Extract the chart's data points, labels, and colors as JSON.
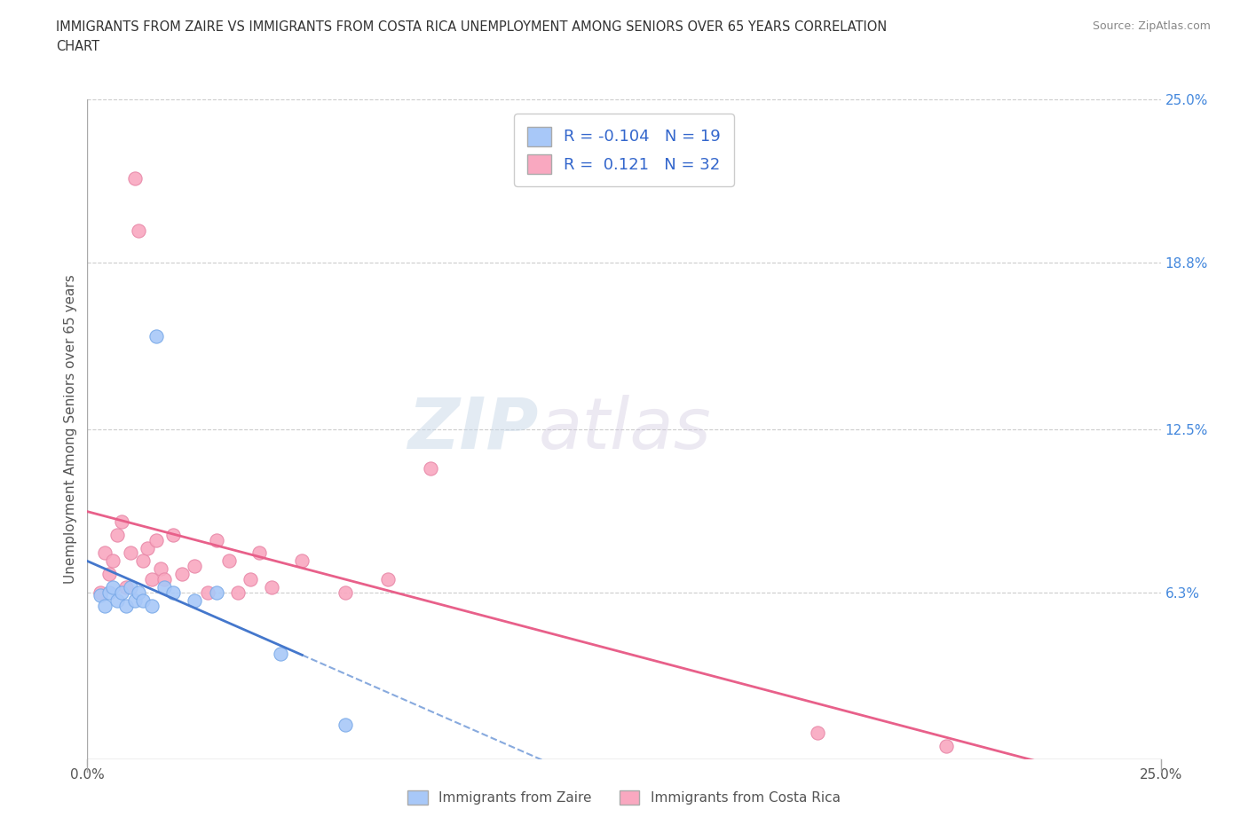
{
  "title_line1": "IMMIGRANTS FROM ZAIRE VS IMMIGRANTS FROM COSTA RICA UNEMPLOYMENT AMONG SENIORS OVER 65 YEARS CORRELATION",
  "title_line2": "CHART",
  "source": "Source: ZipAtlas.com",
  "ylabel": "Unemployment Among Seniors over 65 years",
  "xlim": [
    0.0,
    0.25
  ],
  "ylim": [
    0.0,
    0.25
  ],
  "xtick_positions": [
    0.0,
    0.25
  ],
  "xtick_labels": [
    "0.0%",
    "25.0%"
  ],
  "ytick_vals_right": [
    0.25,
    0.188,
    0.125,
    0.063
  ],
  "ytick_labels_right": [
    "25.0%",
    "18.8%",
    "12.5%",
    "6.3%"
  ],
  "grid_color": "#cccccc",
  "background_color": "#ffffff",
  "zaire_color": "#a8c8f8",
  "zaire_edge_color": "#7aaae8",
  "costa_rica_color": "#f9a8c0",
  "costa_rica_edge_color": "#e888a8",
  "zaire_line_color": "#4477cc",
  "zaire_dash_color": "#88aade",
  "costa_rica_line_color": "#e8608a",
  "R_zaire": -0.104,
  "N_zaire": 19,
  "R_costa_rica": 0.121,
  "N_costa_rica": 32,
  "legend_label_zaire": "Immigrants from Zaire",
  "legend_label_costa_rica": "Immigrants from Costa Rica",
  "zaire_x": [
    0.003,
    0.004,
    0.005,
    0.006,
    0.007,
    0.008,
    0.009,
    0.01,
    0.011,
    0.012,
    0.013,
    0.015,
    0.016,
    0.018,
    0.02,
    0.025,
    0.03,
    0.045,
    0.06
  ],
  "zaire_y": [
    0.062,
    0.058,
    0.063,
    0.065,
    0.06,
    0.063,
    0.058,
    0.065,
    0.06,
    0.063,
    0.06,
    0.058,
    0.16,
    0.065,
    0.063,
    0.06,
    0.063,
    0.04,
    0.013
  ],
  "costa_rica_x": [
    0.003,
    0.004,
    0.005,
    0.006,
    0.007,
    0.008,
    0.009,
    0.01,
    0.011,
    0.012,
    0.013,
    0.014,
    0.015,
    0.016,
    0.017,
    0.018,
    0.02,
    0.022,
    0.025,
    0.028,
    0.03,
    0.033,
    0.035,
    0.038,
    0.04,
    0.043,
    0.05,
    0.06,
    0.07,
    0.08,
    0.17,
    0.2
  ],
  "costa_rica_y": [
    0.063,
    0.078,
    0.07,
    0.075,
    0.085,
    0.09,
    0.065,
    0.078,
    0.22,
    0.2,
    0.075,
    0.08,
    0.068,
    0.083,
    0.072,
    0.068,
    0.085,
    0.07,
    0.073,
    0.063,
    0.083,
    0.075,
    0.063,
    0.068,
    0.078,
    0.065,
    0.075,
    0.063,
    0.068,
    0.11,
    0.01,
    0.005
  ]
}
